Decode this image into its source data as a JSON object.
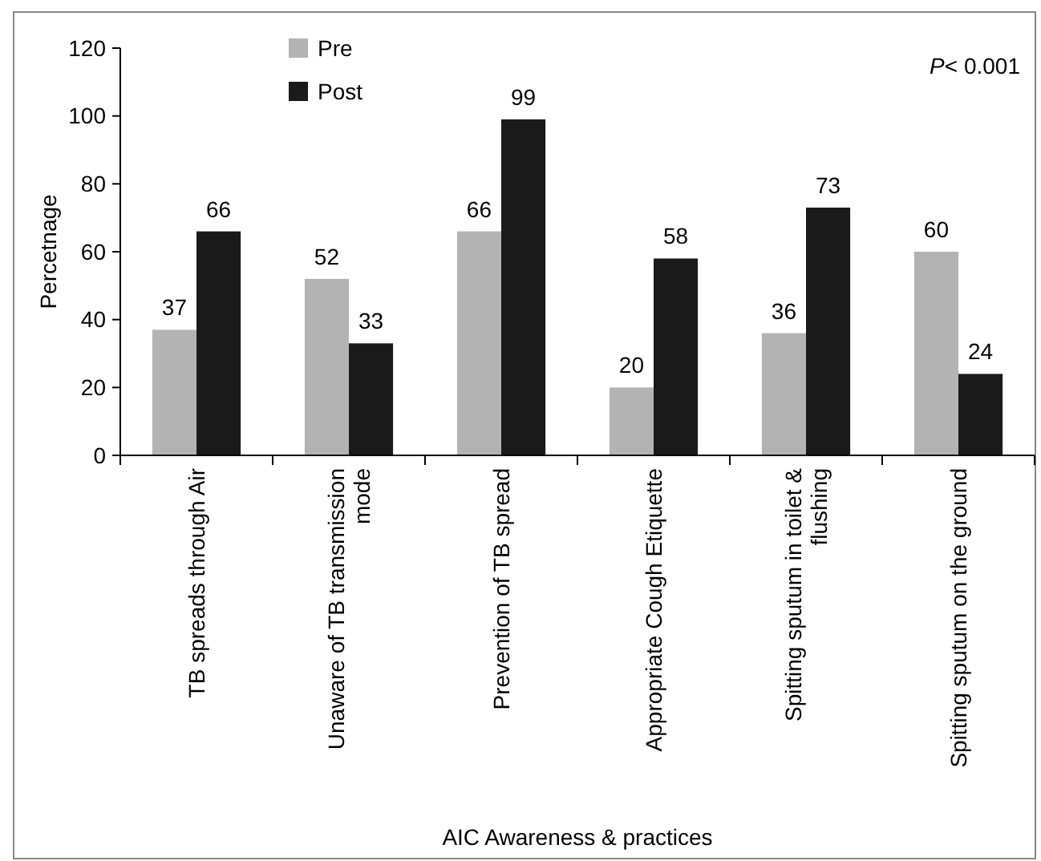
{
  "chart_data": {
    "type": "bar",
    "xlabel": "AIC Awareness & practices",
    "ylabel": "Percetnage",
    "categories": [
      "TB spreads through Air",
      "Unaware of TB transmission mode",
      "Prevention of TB spread",
      "Appropriate Cough Etiquette",
      "Spitting sputum in toilet & flushing",
      "Spitting sputum on the ground"
    ],
    "series": [
      {
        "name": "Pre",
        "color": "#b3b3b3",
        "values": [
          37,
          52,
          66,
          20,
          36,
          60
        ]
      },
      {
        "name": "Post",
        "color": "#1a1a1a",
        "values": [
          66,
          33,
          99,
          58,
          73,
          24
        ]
      }
    ],
    "ylim": [
      0,
      120
    ],
    "yticks": [
      0,
      20,
      40,
      60,
      80,
      100,
      120
    ],
    "grid": false,
    "legend": "top left",
    "data_labels": true,
    "annotations": [
      "P< 0.001"
    ]
  }
}
